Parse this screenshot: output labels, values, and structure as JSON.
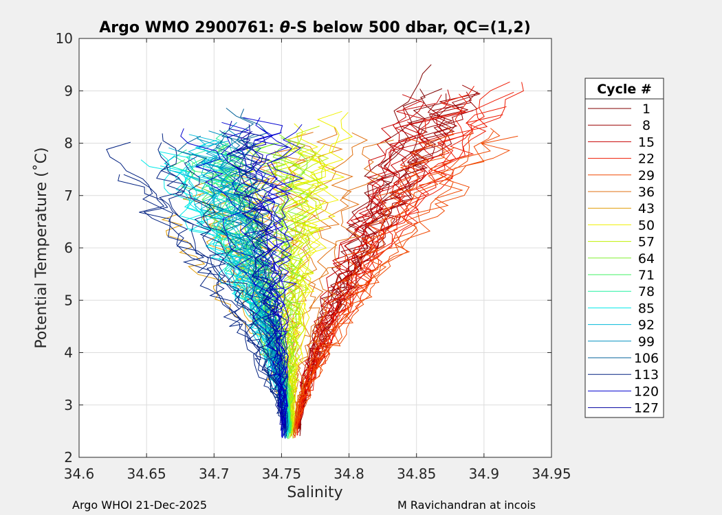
{
  "chart_data": {
    "type": "line",
    "title_prefix": "Argo WMO 2900761: ",
    "title_theta": "θ",
    "title_suffix": "-S below 500 dbar,  QC=(1,2)",
    "xlabel": "Salinity",
    "ylabel": "Potential Temperature (˚C)",
    "xlim": [
      34.6,
      34.95
    ],
    "ylim": [
      2,
      10
    ],
    "xticks": [
      "34.6",
      "34.65",
      "34.7",
      "34.75",
      "34.8",
      "34.85",
      "34.9",
      "34.95"
    ],
    "yticks": [
      "2",
      "3",
      "4",
      "5",
      "6",
      "7",
      "8",
      "9",
      "10"
    ],
    "grid": true,
    "legend": {
      "title": "Cycle #",
      "placement": "outside-right",
      "entries": [
        {
          "label": "1",
          "color": "#800000"
        },
        {
          "label": "8",
          "color": "#9a0000"
        },
        {
          "label": "15",
          "color": "#c80000"
        },
        {
          "label": "22",
          "color": "#ee1800"
        },
        {
          "label": "29",
          "color": "#f04800"
        },
        {
          "label": "36",
          "color": "#e07010"
        },
        {
          "label": "43",
          "color": "#e09a00"
        },
        {
          "label": "50",
          "color": "#f0f000"
        },
        {
          "label": "57",
          "color": "#c0f000"
        },
        {
          "label": "64",
          "color": "#80f030"
        },
        {
          "label": "71",
          "color": "#40f060"
        },
        {
          "label": "78",
          "color": "#20f0a0"
        },
        {
          "label": "85",
          "color": "#00e8e8"
        },
        {
          "label": "92",
          "color": "#00b8d8"
        },
        {
          "label": "99",
          "color": "#0090c0"
        },
        {
          "label": "106",
          "color": "#006098"
        },
        {
          "label": "113",
          "color": "#002080"
        },
        {
          "label": "120",
          "color": "#0000d0"
        },
        {
          "label": "127",
          "color": "#0000a0"
        }
      ]
    },
    "cycle_envelope": [
      {
        "cycle": 1,
        "bottom_s": 34.762,
        "top_s": 34.86,
        "top_t": 9.3
      },
      {
        "cycle": 8,
        "bottom_s": 34.762,
        "top_s": 34.89,
        "top_t": 8.9
      },
      {
        "cycle": 15,
        "bottom_s": 34.761,
        "top_s": 34.845,
        "top_t": 8.6
      },
      {
        "cycle": 22,
        "bottom_s": 34.76,
        "top_s": 34.925,
        "top_t": 9.0
      },
      {
        "cycle": 29,
        "bottom_s": 34.76,
        "top_s": 34.9,
        "top_t": 8.1
      },
      {
        "cycle": 36,
        "bottom_s": 34.759,
        "top_s": 34.78,
        "top_t": 8.5
      },
      {
        "cycle": 43,
        "bottom_s": 34.758,
        "top_s": 34.67,
        "top_t": 6.5
      },
      {
        "cycle": 50,
        "bottom_s": 34.757,
        "top_s": 34.785,
        "top_t": 8.5
      },
      {
        "cycle": 57,
        "bottom_s": 34.757,
        "top_s": 34.765,
        "top_t": 7.9
      },
      {
        "cycle": 64,
        "bottom_s": 34.756,
        "top_s": 34.73,
        "top_t": 7.9
      },
      {
        "cycle": 71,
        "bottom_s": 34.756,
        "top_s": 34.69,
        "top_t": 7.6
      },
      {
        "cycle": 78,
        "bottom_s": 34.755,
        "top_s": 34.71,
        "top_t": 8.0
      },
      {
        "cycle": 85,
        "bottom_s": 34.755,
        "top_s": 34.66,
        "top_t": 7.8
      },
      {
        "cycle": 92,
        "bottom_s": 34.754,
        "top_s": 34.68,
        "top_t": 7.9
      },
      {
        "cycle": 99,
        "bottom_s": 34.753,
        "top_s": 34.7,
        "top_t": 7.9
      },
      {
        "cycle": 106,
        "bottom_s": 34.753,
        "top_s": 34.73,
        "top_t": 8.6
      },
      {
        "cycle": 113,
        "bottom_s": 34.752,
        "top_s": 34.62,
        "top_t": 7.6
      },
      {
        "cycle": 120,
        "bottom_s": 34.752,
        "top_s": 34.75,
        "top_t": 8.3
      },
      {
        "cycle": 127,
        "bottom_s": 34.751,
        "top_s": 34.72,
        "top_t": 8.2
      }
    ]
  },
  "footer": {
    "left": "Argo WHOI 21-Dec-2025",
    "right": "M Ravichandran at incois"
  }
}
